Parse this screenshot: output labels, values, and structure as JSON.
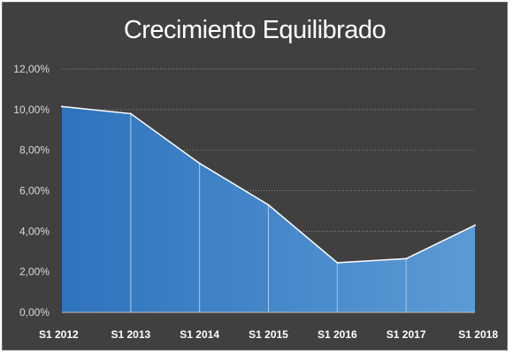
{
  "chart_data": {
    "type": "area",
    "title": "Crecimiento Equilibrado",
    "xlabel": "",
    "ylabel": "",
    "categories": [
      "S1 2012",
      "S1 2013",
      "S1 2014",
      "S1 2015",
      "S1 2016",
      "S1 2017",
      "S1 2018"
    ],
    "values": [
      10.15,
      9.8,
      7.35,
      5.3,
      2.45,
      2.65,
      4.3
    ],
    "ylim": [
      0,
      12
    ],
    "yticks": [
      "0,00%",
      "2,00%",
      "4,00%",
      "6,00%",
      "8,00%",
      "10,00%",
      "12,00%"
    ],
    "ytick_values": [
      0,
      2,
      4,
      6,
      8,
      10,
      12
    ],
    "grid": true,
    "legend": "none",
    "colors": {
      "background": "#404040",
      "area_dark": "#2e73bd",
      "area_light": "#5b9bd5",
      "line": "#ffffff",
      "grid": "#8c8c8c"
    }
  }
}
